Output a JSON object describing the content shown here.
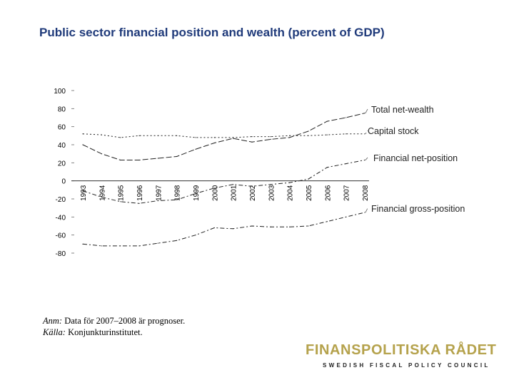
{
  "title": "Public sector financial position and wealth (percent of GDP)",
  "notes": {
    "note_label": "Anm:",
    "note_text": " Data för 2007–2008 är prognoser.",
    "source_label": "Källa:",
    "source_text": " Konjunkturinstitutet."
  },
  "brand": {
    "name": "FINANSPOLITISKA RÅDET",
    "subtitle": "SWEDISH FISCAL POLICY COUNCIL",
    "color": "#b5a24c"
  },
  "chart_data": {
    "type": "line",
    "x": [
      "1993",
      "1994",
      "1995",
      "1996",
      "1997",
      "1998",
      "1999",
      "2000",
      "2001",
      "2002",
      "2003",
      "2004",
      "2005",
      "2006",
      "2007",
      "2008"
    ],
    "y_ticks": [
      "100",
      "80",
      "60",
      "40",
      "20",
      "0",
      "-20",
      "-40",
      "-60",
      "-80"
    ],
    "ylim": [
      -80,
      100
    ],
    "grid": false,
    "series": [
      {
        "name": "Total net-wealth",
        "dash": "8,3",
        "values": [
          40,
          30,
          23,
          23,
          25,
          27,
          35,
          42,
          47,
          43,
          46,
          48,
          55,
          66,
          70,
          75
        ]
      },
      {
        "name": "Capital stock",
        "dash": "2,3",
        "values": [
          52,
          51,
          48,
          50,
          50,
          50,
          48,
          48,
          48,
          49,
          49,
          50,
          50,
          51,
          52,
          52
        ]
      },
      {
        "name": "Financial net-position",
        "dash": "6,3,2,3",
        "values": [
          -11,
          -18,
          -23,
          -25,
          -22,
          -21,
          -14,
          -8,
          -4,
          -6,
          -4,
          -2,
          2,
          15,
          19,
          23
        ]
      },
      {
        "name": "Financial gross-position",
        "dash": "6,3,2,3",
        "values": [
          -70,
          -72,
          -72,
          -72,
          -69,
          -66,
          -60,
          -52,
          -53,
          -50,
          -51,
          -51,
          -50,
          -45,
          -40,
          -35
        ]
      }
    ]
  }
}
